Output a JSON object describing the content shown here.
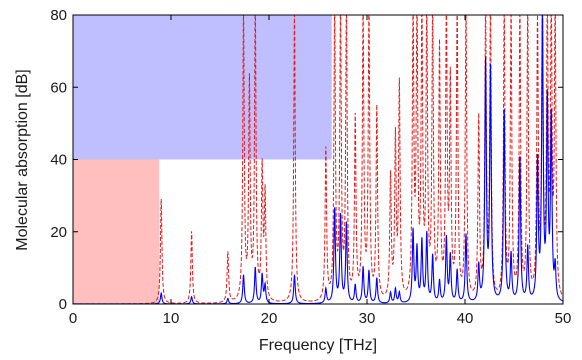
{
  "chart_data": {
    "type": "line",
    "title": "",
    "xlabel": "Frequency [THz]",
    "ylabel": "Molecular absorption [dB]",
    "xlim": [
      0,
      50
    ],
    "ylim": [
      0,
      80
    ],
    "xticks": [
      0,
      10,
      20,
      30,
      40,
      50
    ],
    "yticks": [
      0,
      20,
      40,
      60,
      80
    ],
    "grid": false,
    "legend": "none",
    "regions": [
      {
        "color": "#ffbfbf",
        "x": [
          0,
          8.8
        ],
        "y": [
          0,
          40
        ]
      },
      {
        "color": "#bfbfff",
        "x": [
          0,
          26.4
        ],
        "y": [
          40,
          80
        ]
      }
    ],
    "series": [
      {
        "style": "dashed",
        "color": "#e41a1a",
        "peaks": [
          [
            9.0,
            29
          ],
          [
            12.1,
            20
          ],
          [
            15.8,
            14
          ],
          [
            17.4,
            80
          ],
          [
            18.0,
            60
          ],
          [
            18.6,
            80
          ],
          [
            19.3,
            36
          ],
          [
            19.6,
            29
          ],
          [
            22.6,
            80
          ],
          [
            25.8,
            42
          ],
          [
            26.7,
            80
          ],
          [
            27.3,
            80
          ],
          [
            27.9,
            80
          ],
          [
            28.8,
            50
          ],
          [
            29.6,
            80
          ],
          [
            30.2,
            80
          ],
          [
            31.0,
            53
          ],
          [
            32.4,
            34
          ],
          [
            32.9,
            44
          ],
          [
            33.3,
            59
          ],
          [
            34.7,
            80
          ],
          [
            35.1,
            80
          ],
          [
            35.6,
            80
          ],
          [
            36.1,
            80
          ],
          [
            36.7,
            80
          ],
          [
            37.4,
            69
          ],
          [
            38.1,
            80
          ],
          [
            38.5,
            59
          ],
          [
            39.2,
            80
          ],
          [
            40.1,
            80
          ],
          [
            41.4,
            50
          ],
          [
            42.1,
            80
          ],
          [
            42.6,
            80
          ],
          [
            44.0,
            80
          ],
          [
            44.7,
            80
          ],
          [
            45.6,
            80
          ],
          [
            46.4,
            80
          ],
          [
            47.4,
            76
          ],
          [
            47.9,
            80
          ],
          [
            48.4,
            80
          ],
          [
            48.8,
            80
          ],
          [
            49.2,
            80
          ]
        ]
      },
      {
        "style": "solid",
        "color": "#0000ff",
        "peaks": [
          [
            9.0,
            3
          ],
          [
            12.1,
            2
          ],
          [
            15.8,
            1.5
          ],
          [
            17.4,
            8
          ],
          [
            18.6,
            10
          ],
          [
            19.3,
            8
          ],
          [
            19.6,
            5
          ],
          [
            22.6,
            8
          ],
          [
            25.8,
            4
          ],
          [
            26.7,
            26
          ],
          [
            27.3,
            24
          ],
          [
            27.9,
            22
          ],
          [
            28.8,
            5
          ],
          [
            29.6,
            10
          ],
          [
            30.2,
            9
          ],
          [
            31.0,
            7
          ],
          [
            32.4,
            3
          ],
          [
            32.9,
            4
          ],
          [
            33.3,
            3
          ],
          [
            34.7,
            20
          ],
          [
            35.1,
            15
          ],
          [
            35.6,
            17
          ],
          [
            36.1,
            19
          ],
          [
            36.7,
            13
          ],
          [
            37.4,
            6
          ],
          [
            38.1,
            18
          ],
          [
            38.5,
            13
          ],
          [
            39.2,
            9
          ],
          [
            40.1,
            19
          ],
          [
            41.4,
            10
          ],
          [
            42.1,
            66
          ],
          [
            42.6,
            64
          ],
          [
            44.0,
            53
          ],
          [
            44.7,
            13
          ],
          [
            45.6,
            40
          ],
          [
            46.4,
            15
          ],
          [
            47.4,
            38
          ],
          [
            47.9,
            79
          ],
          [
            48.4,
            54
          ],
          [
            48.8,
            50
          ],
          [
            49.2,
            9
          ]
        ]
      }
    ]
  }
}
